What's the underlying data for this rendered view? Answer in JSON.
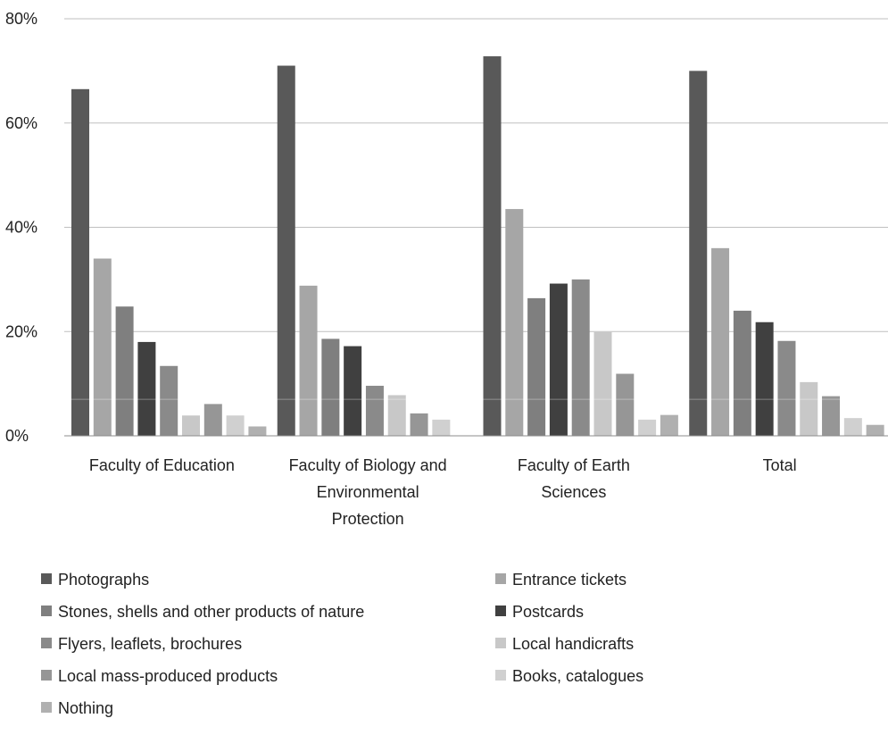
{
  "chart_data": {
    "type": "bar",
    "title": "",
    "xlabel": "",
    "ylabel": "",
    "ylim": [
      0,
      80
    ],
    "yticks": [
      "0%",
      "20%",
      "40%",
      "60%",
      "80%"
    ],
    "ytick_values": [
      0,
      20,
      40,
      60,
      80
    ],
    "grid": true,
    "legend_position": "bottom",
    "categories": [
      "Faculty of Education",
      "Faculty of Biology and Environmental Protection",
      "Faculty of Earth Sciences",
      "Total"
    ],
    "category_label_lines": [
      [
        "Faculty of Education"
      ],
      [
        "Faculty of Biology and",
        "Environmental",
        "Protection"
      ],
      [
        "Faculty of Earth",
        "Sciences"
      ],
      [
        "Total"
      ]
    ],
    "series": [
      {
        "name": "Photographs",
        "color": "#595959",
        "values": [
          66.5,
          71,
          72.8,
          70
        ]
      },
      {
        "name": "Entrance tickets",
        "color": "#a6a6a6",
        "values": [
          34,
          28.8,
          43.5,
          36
        ]
      },
      {
        "name": "Stones, shells and other products of nature",
        "color": "#7f7f7f",
        "values": [
          24.8,
          18.6,
          26.4,
          24
        ]
      },
      {
        "name": "Postcards",
        "color": "#404040",
        "values": [
          18,
          17.2,
          29.2,
          21.8
        ]
      },
      {
        "name": "Flyers, leaflets, brochures",
        "color": "#8a8a8a",
        "values": [
          13.4,
          9.6,
          30,
          18.2
        ]
      },
      {
        "name": "Local handicrafts",
        "color": "#c8c8c8",
        "values": [
          3.9,
          7.8,
          19.9,
          10.3
        ]
      },
      {
        "name": "Local mass-produced products",
        "color": "#969696",
        "values": [
          6.1,
          4.3,
          11.9,
          7.6
        ]
      },
      {
        "name": "Books, catalogues",
        "color": "#d0d0d0",
        "values": [
          3.9,
          3.1,
          3.1,
          3.4
        ]
      },
      {
        "name": "Nothing",
        "color": "#b0b0b0",
        "values": [
          1.8,
          0,
          4,
          2.1
        ]
      }
    ]
  }
}
